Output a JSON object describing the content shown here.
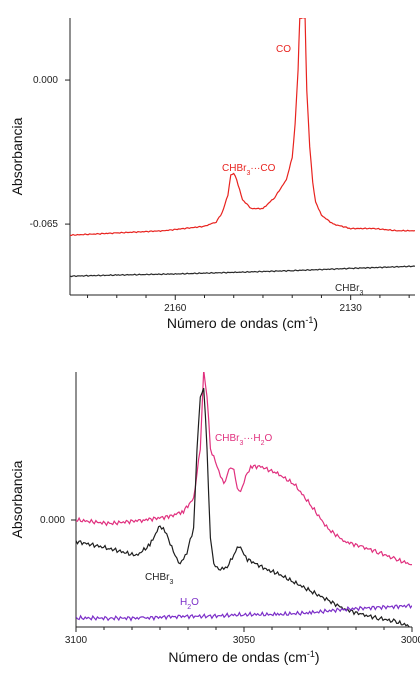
{
  "chart_data": [
    {
      "type": "line",
      "xlabel": "Número de ondas (cm",
      "xlabel_sup": "-1",
      "xlabel_close": ")",
      "ylabel": "Absorbancia",
      "xlim": [
        2178,
        2119
      ],
      "ylim": [
        -0.097,
        0.028
      ],
      "x_ticks": [
        2160,
        2130
      ],
      "x_tick_labels": [
        "2160",
        "2130"
      ],
      "y_ticks": [
        0.0,
        -0.065
      ],
      "y_tick_labels": [
        "0.000",
        "-0.065"
      ],
      "grid": false,
      "series": [
        {
          "name": "CO",
          "color": "#e8231f",
          "points": [
            [
              2178,
              -0.07
            ],
            [
              2170,
              -0.069
            ],
            [
              2162,
              -0.068
            ],
            [
              2155,
              -0.066
            ],
            [
              2153,
              -0.064
            ],
            [
              2152,
              -0.06
            ],
            [
              2151,
              -0.052
            ],
            [
              2150.5,
              -0.043
            ],
            [
              2150,
              -0.042
            ],
            [
              2149.5,
              -0.045
            ],
            [
              2148.5,
              -0.054
            ],
            [
              2147,
              -0.058
            ],
            [
              2145,
              -0.058
            ],
            [
              2143,
              -0.053
            ],
            [
              2141,
              -0.045
            ],
            [
              2140,
              -0.035
            ],
            [
              2139.5,
              -0.02
            ],
            [
              2139,
              0.005
            ],
            [
              2138.7,
              0.028
            ],
            [
              2137.8,
              0.028
            ],
            [
              2137.5,
              -0.005
            ],
            [
              2137,
              -0.03
            ],
            [
              2136.5,
              -0.046
            ],
            [
              2136,
              -0.055
            ],
            [
              2135,
              -0.061
            ],
            [
              2133,
              -0.065
            ],
            [
              2130,
              -0.067
            ],
            [
              2126,
              -0.067
            ],
            [
              2122,
              -0.068
            ],
            [
              2119,
              -0.068
            ]
          ]
        },
        {
          "name": "CHBr3",
          "color": "#2a2a2a",
          "points": [
            [
              2178,
              -0.0885
            ],
            [
              2170,
              -0.088
            ],
            [
              2160,
              -0.0875
            ],
            [
              2150,
              -0.0868
            ],
            [
              2140,
              -0.086
            ],
            [
              2130,
              -0.085
            ],
            [
              2119,
              -0.084
            ]
          ]
        }
      ],
      "annotations": [
        {
          "main": "CO",
          "sub": "",
          "rest": "",
          "color": "#e8231f"
        },
        {
          "main": "CHBr",
          "sub": "3",
          "rest": "···CO",
          "color": "#e8231f"
        },
        {
          "main": "CHBr",
          "sub": "3",
          "rest": "",
          "color": "#2a2a2a"
        }
      ]
    },
    {
      "type": "line",
      "xlabel": "Número de ondas (cm",
      "xlabel_sup": "-1",
      "xlabel_close": ")",
      "ylabel": "Absorbancia",
      "xlim": [
        3100,
        3000
      ],
      "ylim": [
        -0.06,
        0.083
      ],
      "x_ticks": [
        3100,
        3050,
        3000
      ],
      "x_tick_labels": [
        "3100",
        "3050",
        "3000"
      ],
      "y_ticks": [
        0.0
      ],
      "y_tick_labels": [
        "0.000"
      ],
      "grid": false,
      "series": [
        {
          "name": "CHBr3···H2O",
          "color": "#e0307e",
          "points": [
            [
              3100,
              0.0
            ],
            [
              3090,
              -0.002
            ],
            [
              3080,
              0.0
            ],
            [
              3072,
              0.002
            ],
            [
              3068,
              0.005
            ],
            [
              3065,
              0.012
            ],
            [
              3063,
              0.04
            ],
            [
              3062,
              0.083
            ],
            [
              3061,
              0.07
            ],
            [
              3060,
              0.04
            ],
            [
              3058,
              0.03
            ],
            [
              3056,
              0.02
            ],
            [
              3055,
              0.025
            ],
            [
              3054,
              0.03
            ],
            [
              3053,
              0.028
            ],
            [
              3052,
              0.018
            ],
            [
              3051,
              0.015
            ],
            [
              3050,
              0.022
            ],
            [
              3048,
              0.03
            ],
            [
              3045,
              0.03
            ],
            [
              3040,
              0.026
            ],
            [
              3035,
              0.02
            ],
            [
              3030,
              0.008
            ],
            [
              3025,
              -0.005
            ],
            [
              3020,
              -0.012
            ],
            [
              3015,
              -0.015
            ],
            [
              3010,
              -0.018
            ],
            [
              3005,
              -0.022
            ],
            [
              3000,
              -0.025
            ]
          ]
        },
        {
          "name": "CHBr3",
          "color": "#1e1e1e",
          "points": [
            [
              3100,
              -0.012
            ],
            [
              3090,
              -0.016
            ],
            [
              3082,
              -0.02
            ],
            [
              3078,
              -0.014
            ],
            [
              3075,
              -0.003
            ],
            [
              3073,
              -0.008
            ],
            [
              3071,
              -0.018
            ],
            [
              3069,
              -0.025
            ],
            [
              3067,
              -0.018
            ],
            [
              3065,
              -0.005
            ],
            [
              3064,
              0.04
            ],
            [
              3063,
              0.068
            ],
            [
              3062,
              0.075
            ],
            [
              3061,
              0.04
            ],
            [
              3060,
              -0.01
            ],
            [
              3059,
              -0.025
            ],
            [
              3057,
              -0.028
            ],
            [
              3055,
              -0.026
            ],
            [
              3053,
              -0.02
            ],
            [
              3052,
              -0.015
            ],
            [
              3051,
              -0.016
            ],
            [
              3049,
              -0.022
            ],
            [
              3046,
              -0.025
            ],
            [
              3043,
              -0.028
            ],
            [
              3040,
              -0.03
            ],
            [
              3035,
              -0.035
            ],
            [
              3030,
              -0.04
            ],
            [
              3025,
              -0.045
            ],
            [
              3020,
              -0.05
            ],
            [
              3015,
              -0.053
            ],
            [
              3010,
              -0.055
            ],
            [
              3005,
              -0.057
            ],
            [
              3000,
              -0.06
            ]
          ]
        },
        {
          "name": "H2O",
          "color": "#7b2ec8",
          "points": [
            [
              3100,
              -0.055
            ],
            [
              3090,
              -0.055
            ],
            [
              3080,
              -0.055
            ],
            [
              3070,
              -0.054
            ],
            [
              3060,
              -0.054
            ],
            [
              3050,
              -0.053
            ],
            [
              3040,
              -0.053
            ],
            [
              3030,
              -0.052
            ],
            [
              3020,
              -0.05
            ],
            [
              3010,
              -0.049
            ],
            [
              3000,
              -0.048
            ]
          ]
        }
      ],
      "annotations": [
        {
          "main": "CHBr",
          "sub": "3",
          "rest": "···H",
          "sub2": "2",
          "rest2": "O",
          "color": "#e0307e"
        },
        {
          "main": "CHBr",
          "sub": "3",
          "rest": "",
          "color": "#1e1e1e"
        },
        {
          "main": "H",
          "sub": "2",
          "rest": "O",
          "color": "#7b2ec8"
        }
      ]
    }
  ]
}
